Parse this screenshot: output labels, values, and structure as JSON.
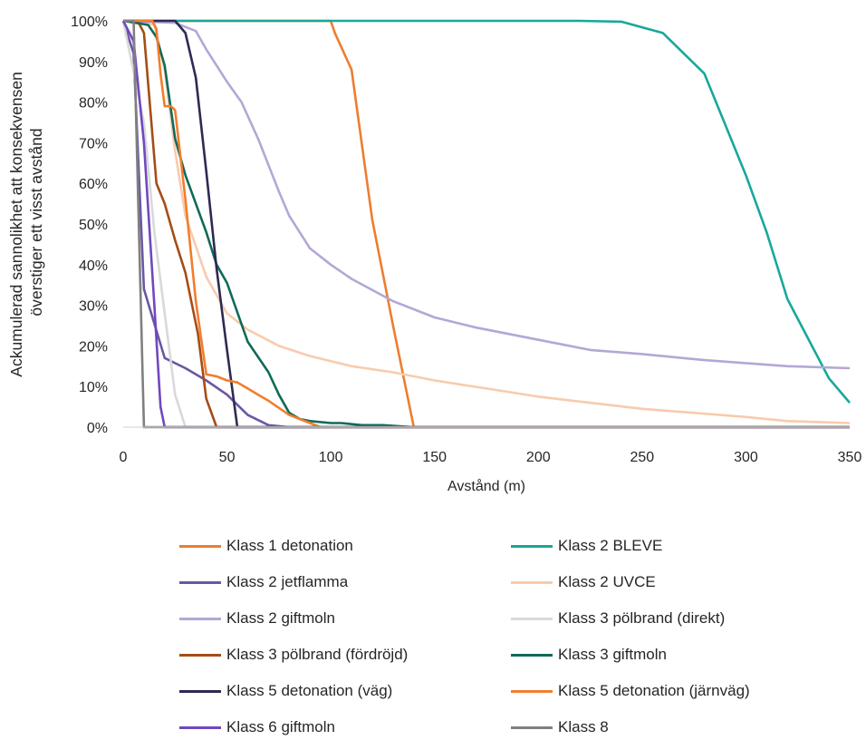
{
  "chart_data": {
    "type": "line",
    "xlabel": "Avstånd (m)",
    "ylabel_lines": [
      "Ackumulerad sannolikhet att konsekvensen",
      "överstiger ett  visst avstånd"
    ],
    "xlim": [
      0,
      350
    ],
    "ylim": [
      0,
      100
    ],
    "xticks": [
      "0",
      "50",
      "100",
      "150",
      "200",
      "250",
      "300",
      "350"
    ],
    "yticks": [
      "0%",
      "10%",
      "20%",
      "30%",
      "40%",
      "50%",
      "60%",
      "70%",
      "80%",
      "90%",
      "100%"
    ],
    "grid": false,
    "legend_position": "bottom",
    "series": [
      {
        "name": "Klass 1 detonation",
        "color": "#ED7D31",
        "x": [
          0,
          100,
          102,
          110,
          120,
          130,
          140,
          350
        ],
        "y": [
          100,
          100,
          97,
          88,
          51,
          25,
          0,
          0
        ]
      },
      {
        "name": "Klass 2 BLEVE",
        "color": "#17A89B",
        "x": [
          0,
          220,
          240,
          260,
          280,
          300,
          310,
          320,
          340,
          350
        ],
        "y": [
          100,
          100,
          99.8,
          97,
          87,
          62,
          48,
          31.5,
          12,
          6
        ]
      },
      {
        "name": "Klass 2 jetflamma",
        "color": "#6B57A3",
        "x": [
          0,
          5,
          10,
          20,
          30,
          40,
          50,
          60,
          70,
          80,
          350
        ],
        "y": [
          100,
          92,
          34,
          17,
          14.5,
          11.5,
          8,
          3,
          0.5,
          0,
          0
        ]
      },
      {
        "name": "Klass 2 UVCE",
        "color": "#F8CBAD",
        "x": [
          0,
          15,
          20,
          25,
          30,
          40,
          50,
          60,
          75,
          90,
          110,
          130,
          150,
          175,
          200,
          250,
          300,
          320,
          350
        ],
        "y": [
          100,
          99,
          88,
          68,
          52,
          37,
          28,
          24,
          20,
          17.5,
          15,
          13.5,
          11.5,
          9.5,
          7.5,
          4.5,
          2.5,
          1.5,
          1
        ]
      },
      {
        "name": "Klass 2 giftmoln",
        "color": "#B4A7D6",
        "x": [
          0,
          25,
          35,
          40,
          50,
          57,
          65,
          75,
          80,
          90,
          100,
          110,
          130,
          150,
          170,
          190,
          225,
          250,
          280,
          320,
          350
        ],
        "y": [
          100,
          99.5,
          97.5,
          93,
          85,
          80,
          71,
          58,
          52,
          44,
          40,
          36.5,
          31,
          27,
          24.5,
          22.5,
          19,
          18,
          16.5,
          15,
          14.5
        ]
      },
      {
        "name": "Klass 3 pölbrand (direkt)",
        "color": "#D9D9D9",
        "x": [
          0,
          10,
          15,
          20,
          25,
          30,
          350
        ],
        "y": [
          100,
          75,
          48,
          28,
          8,
          0,
          0
        ]
      },
      {
        "name": "Klass 3 pölbrand (fördröjd)",
        "color": "#A54D16",
        "x": [
          0,
          7,
          10,
          16,
          20,
          25,
          30,
          36,
          40,
          45,
          350
        ],
        "y": [
          100,
          100,
          97,
          60,
          55,
          46,
          38,
          23,
          7,
          0,
          0
        ]
      },
      {
        "name": "Klass 3 giftmoln",
        "color": "#0F6B58",
        "x": [
          0,
          12,
          16,
          20,
          25,
          30,
          40,
          45,
          50,
          60,
          70,
          75,
          80,
          85,
          90,
          100,
          105,
          115,
          125,
          140,
          350
        ],
        "y": [
          100,
          99,
          96,
          89,
          71,
          62,
          48,
          40,
          35.5,
          21,
          13.5,
          8,
          3.5,
          2,
          1.5,
          1,
          1,
          0.5,
          0.5,
          0,
          0
        ]
      },
      {
        "name": "Klass 5 detonation (väg)",
        "color": "#2E2A53",
        "x": [
          0,
          25,
          30,
          35,
          40,
          45,
          50,
          55,
          350
        ],
        "y": [
          100,
          100,
          97,
          86,
          63,
          39,
          19,
          0,
          0
        ]
      },
      {
        "name": "Klass 5 detonation (järnväg)",
        "color": "#F27D2E",
        "x": [
          0,
          14,
          16,
          18,
          20,
          23,
          25,
          30,
          35,
          40,
          45,
          50,
          55,
          60,
          65,
          70,
          80,
          90,
          95,
          350
        ],
        "y": [
          100,
          100,
          98,
          87,
          79,
          79,
          78,
          56,
          31,
          13,
          12.5,
          11.5,
          11,
          9.5,
          8,
          6.5,
          3,
          1,
          0,
          0
        ]
      },
      {
        "name": "Klass 6 giftmoln",
        "color": "#7048C0",
        "x": [
          0,
          5,
          10,
          15,
          18,
          20,
          350
        ],
        "y": [
          100,
          95,
          70,
          30,
          5,
          0,
          0
        ]
      },
      {
        "name": "Klass 8",
        "color": "#808080",
        "x": [
          0,
          5,
          10,
          350
        ],
        "y": [
          100,
          100,
          0,
          0
        ]
      }
    ]
  }
}
